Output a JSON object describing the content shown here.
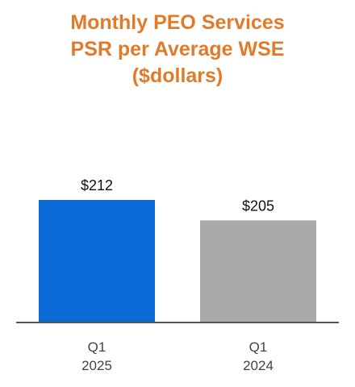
{
  "title_lines": [
    "Monthly PEO Services",
    "PSR per Average WSE",
    "($dollars)"
  ],
  "chart_data": {
    "type": "bar",
    "title": "Monthly PEO Services PSR per Average WSE ($dollars)",
    "categories": [
      {
        "line1": "Q1",
        "line2": "2025"
      },
      {
        "line1": "Q1",
        "line2": "2024"
      }
    ],
    "values": [
      212,
      205
    ],
    "data_labels": [
      "$212",
      "$205"
    ],
    "bar_colors": [
      "#0a6ad6",
      "#a9a9a9"
    ],
    "title_color": "#e07b2a",
    "baseline_color": "#555555",
    "grid": false,
    "legend": "none",
    "y_axis_visible": false
  }
}
